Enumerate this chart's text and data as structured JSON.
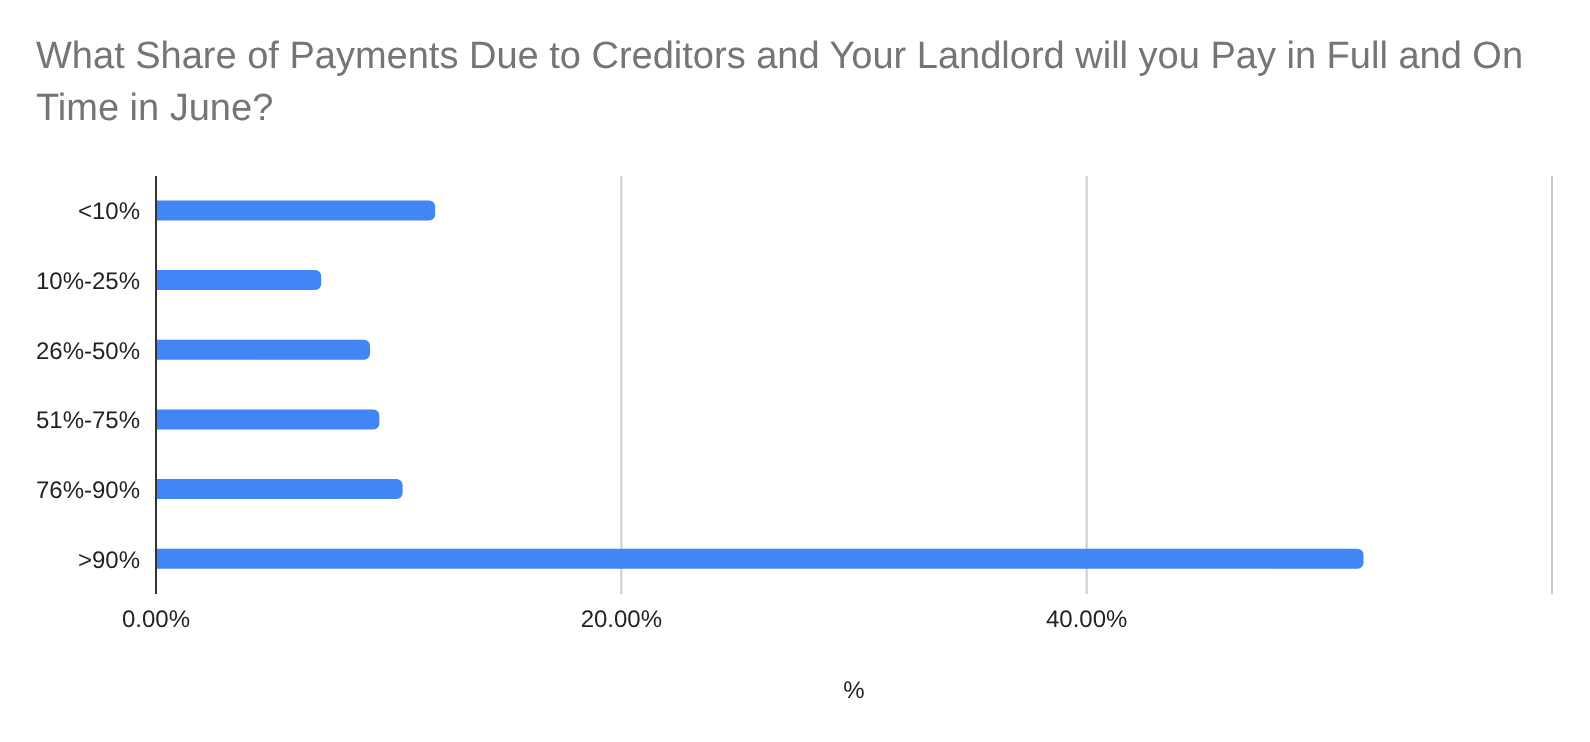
{
  "chart_data": {
    "type": "bar",
    "orientation": "horizontal",
    "title": "What Share of Payments Due to Creditors and Your Landlord will you Pay in Full and On Time in June?",
    "xlabel": "%",
    "categories": [
      "<10%",
      "10%-25%",
      "26%-50%",
      "51%-75%",
      "76%-90%",
      ">90%"
    ],
    "values": [
      12.0,
      7.1,
      9.2,
      9.6,
      10.6,
      51.9
    ],
    "color": "#4285f4",
    "xlim": [
      0,
      60
    ],
    "xticks": [
      {
        "value": 0,
        "label": "0.00%"
      },
      {
        "value": 20,
        "label": "20.00%"
      },
      {
        "value": 40,
        "label": "40.00%"
      },
      {
        "value": 60,
        "label": null
      }
    ],
    "grid": "x",
    "legend": false
  }
}
